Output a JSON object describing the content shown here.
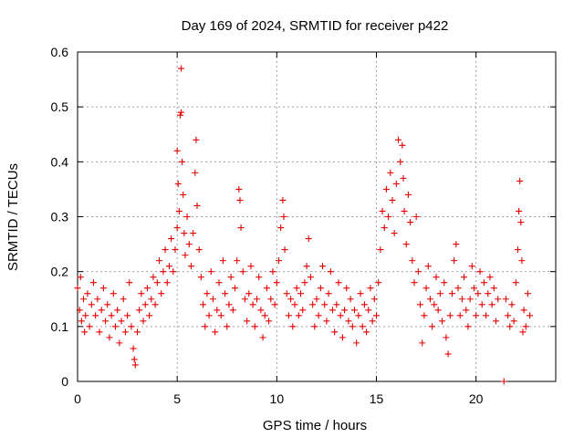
{
  "chart_data": {
    "type": "scatter",
    "title": "Day 169 of 2024, SRMTID for receiver p422",
    "xlabel": "GPS time / hours",
    "ylabel": "SRMTID / TECUs",
    "xlim": [
      0,
      24
    ],
    "ylim": [
      0,
      0.6
    ],
    "xticks": [
      0,
      5,
      10,
      15,
      20
    ],
    "xtick_labels": [
      "0",
      "5",
      "10",
      "15",
      "20"
    ],
    "yticks": [
      0,
      0.1,
      0.2,
      0.3,
      0.4,
      0.5,
      0.6
    ],
    "ytick_labels": [
      "0",
      "0.1",
      "0.2",
      "0.3",
      "0.4",
      "0.5",
      "0.6"
    ],
    "grid": true,
    "marker": "plus",
    "color": "#e60000",
    "series": [
      {
        "name": "SRMTID",
        "points": [
          [
            0.0,
            0.17
          ],
          [
            0.1,
            0.13
          ],
          [
            0.15,
            0.19
          ],
          [
            0.2,
            0.11
          ],
          [
            0.3,
            0.15
          ],
          [
            0.35,
            0.09
          ],
          [
            0.4,
            0.12
          ],
          [
            0.5,
            0.16
          ],
          [
            0.6,
            0.1
          ],
          [
            0.7,
            0.14
          ],
          [
            0.8,
            0.18
          ],
          [
            0.9,
            0.12
          ],
          [
            1.0,
            0.15
          ],
          [
            1.1,
            0.09
          ],
          [
            1.2,
            0.13
          ],
          [
            1.3,
            0.17
          ],
          [
            1.4,
            0.11
          ],
          [
            1.5,
            0.14
          ],
          [
            1.6,
            0.08
          ],
          [
            1.7,
            0.12
          ],
          [
            1.8,
            0.16
          ],
          [
            1.9,
            0.1
          ],
          [
            2.0,
            0.13
          ],
          [
            2.1,
            0.07
          ],
          [
            2.2,
            0.11
          ],
          [
            2.3,
            0.15
          ],
          [
            2.4,
            0.09
          ],
          [
            2.5,
            0.12
          ],
          [
            2.6,
            0.18
          ],
          [
            2.7,
            0.1
          ],
          [
            2.8,
            0.06
          ],
          [
            2.85,
            0.04
          ],
          [
            2.9,
            0.03
          ],
          [
            3.0,
            0.09
          ],
          [
            3.1,
            0.13
          ],
          [
            3.2,
            0.16
          ],
          [
            3.3,
            0.11
          ],
          [
            3.4,
            0.14
          ],
          [
            3.5,
            0.17
          ],
          [
            3.6,
            0.12
          ],
          [
            3.7,
            0.15
          ],
          [
            3.8,
            0.19
          ],
          [
            3.9,
            0.14
          ],
          [
            4.0,
            0.18
          ],
          [
            4.1,
            0.22
          ],
          [
            4.2,
            0.16
          ],
          [
            4.3,
            0.2
          ],
          [
            4.4,
            0.24
          ],
          [
            4.5,
            0.18
          ],
          [
            4.6,
            0.21
          ],
          [
            4.7,
            0.26
          ],
          [
            4.8,
            0.2
          ],
          [
            4.9,
            0.24
          ],
          [
            5.0,
            0.28
          ],
          [
            5.0,
            0.42
          ],
          [
            5.05,
            0.36
          ],
          [
            5.1,
            0.31
          ],
          [
            5.15,
            0.485
          ],
          [
            5.2,
            0.49
          ],
          [
            5.2,
            0.57
          ],
          [
            5.25,
            0.4
          ],
          [
            5.3,
            0.34
          ],
          [
            5.35,
            0.27
          ],
          [
            5.4,
            0.23
          ],
          [
            5.5,
            0.3
          ],
          [
            5.6,
            0.25
          ],
          [
            5.7,
            0.21
          ],
          [
            5.8,
            0.27
          ],
          [
            5.9,
            0.38
          ],
          [
            5.95,
            0.44
          ],
          [
            6.0,
            0.32
          ],
          [
            6.1,
            0.24
          ],
          [
            6.2,
            0.19
          ],
          [
            6.3,
            0.14
          ],
          [
            6.4,
            0.1
          ],
          [
            6.5,
            0.16
          ],
          [
            6.6,
            0.12
          ],
          [
            6.7,
            0.2
          ],
          [
            6.8,
            0.15
          ],
          [
            6.9,
            0.09
          ],
          [
            7.0,
            0.13
          ],
          [
            7.1,
            0.18
          ],
          [
            7.2,
            0.12
          ],
          [
            7.3,
            0.22
          ],
          [
            7.4,
            0.16
          ],
          [
            7.5,
            0.1
          ],
          [
            7.6,
            0.14
          ],
          [
            7.7,
            0.19
          ],
          [
            7.8,
            0.13
          ],
          [
            7.9,
            0.17
          ],
          [
            8.0,
            0.22
          ],
          [
            8.1,
            0.35
          ],
          [
            8.15,
            0.33
          ],
          [
            8.2,
            0.28
          ],
          [
            8.3,
            0.2
          ],
          [
            8.4,
            0.15
          ],
          [
            8.5,
            0.11
          ],
          [
            8.6,
            0.16
          ],
          [
            8.7,
            0.21
          ],
          [
            8.8,
            0.14
          ],
          [
            8.9,
            0.1
          ],
          [
            9.0,
            0.15
          ],
          [
            9.1,
            0.19
          ],
          [
            9.2,
            0.13
          ],
          [
            9.3,
            0.08
          ],
          [
            9.4,
            0.12
          ],
          [
            9.5,
            0.17
          ],
          [
            9.6,
            0.11
          ],
          [
            9.7,
            0.15
          ],
          [
            9.8,
            0.2
          ],
          [
            9.9,
            0.14
          ],
          [
            10.0,
            0.18
          ],
          [
            10.1,
            0.22
          ],
          [
            10.2,
            0.28
          ],
          [
            10.3,
            0.33
          ],
          [
            10.35,
            0.3
          ],
          [
            10.4,
            0.24
          ],
          [
            10.5,
            0.16
          ],
          [
            10.6,
            0.12
          ],
          [
            10.7,
            0.15
          ],
          [
            10.8,
            0.1
          ],
          [
            10.9,
            0.14
          ],
          [
            11.0,
            0.17
          ],
          [
            11.1,
            0.12
          ],
          [
            11.2,
            0.16
          ],
          [
            11.3,
            0.13
          ],
          [
            11.4,
            0.18
          ],
          [
            11.5,
            0.21
          ],
          [
            11.6,
            0.26
          ],
          [
            11.7,
            0.19
          ],
          [
            11.8,
            0.14
          ],
          [
            11.9,
            0.1
          ],
          [
            12.0,
            0.15
          ],
          [
            12.1,
            0.12
          ],
          [
            12.2,
            0.17
          ],
          [
            12.3,
            0.21
          ],
          [
            12.4,
            0.14
          ],
          [
            12.5,
            0.11
          ],
          [
            12.6,
            0.16
          ],
          [
            12.7,
            0.2
          ],
          [
            12.8,
            0.13
          ],
          [
            12.9,
            0.09
          ],
          [
            13.0,
            0.14
          ],
          [
            13.1,
            0.18
          ],
          [
            13.2,
            0.12
          ],
          [
            13.3,
            0.08
          ],
          [
            13.4,
            0.13
          ],
          [
            13.5,
            0.17
          ],
          [
            13.6,
            0.11
          ],
          [
            13.7,
            0.15
          ],
          [
            13.8,
            0.1
          ],
          [
            13.9,
            0.13
          ],
          [
            14.0,
            0.07
          ],
          [
            14.1,
            0.12
          ],
          [
            14.2,
            0.16
          ],
          [
            14.3,
            0.1
          ],
          [
            14.4,
            0.14
          ],
          [
            14.5,
            0.09
          ],
          [
            14.6,
            0.13
          ],
          [
            14.7,
            0.17
          ],
          [
            14.8,
            0.11
          ],
          [
            14.9,
            0.15
          ],
          [
            15.0,
            0.12
          ],
          [
            15.1,
            0.18
          ],
          [
            15.2,
            0.24
          ],
          [
            15.3,
            0.31
          ],
          [
            15.4,
            0.28
          ],
          [
            15.5,
            0.35
          ],
          [
            15.6,
            0.3
          ],
          [
            15.7,
            0.38
          ],
          [
            15.8,
            0.33
          ],
          [
            15.9,
            0.27
          ],
          [
            16.0,
            0.36
          ],
          [
            16.1,
            0.44
          ],
          [
            16.2,
            0.4
          ],
          [
            16.3,
            0.43
          ],
          [
            16.35,
            0.37
          ],
          [
            16.4,
            0.31
          ],
          [
            16.5,
            0.25
          ],
          [
            16.6,
            0.34
          ],
          [
            16.7,
            0.29
          ],
          [
            16.8,
            0.22
          ],
          [
            16.9,
            0.18
          ],
          [
            17.0,
            0.3
          ],
          [
            17.1,
            0.2
          ],
          [
            17.2,
            0.14
          ],
          [
            17.3,
            0.07
          ],
          [
            17.4,
            0.12
          ],
          [
            17.5,
            0.17
          ],
          [
            17.6,
            0.21
          ],
          [
            17.7,
            0.15
          ],
          [
            17.8,
            0.1
          ],
          [
            17.9,
            0.14
          ],
          [
            18.0,
            0.19
          ],
          [
            18.1,
            0.13
          ],
          [
            18.2,
            0.16
          ],
          [
            18.3,
            0.11
          ],
          [
            18.4,
            0.18
          ],
          [
            18.5,
            0.08
          ],
          [
            18.6,
            0.05
          ],
          [
            18.7,
            0.12
          ],
          [
            18.8,
            0.16
          ],
          [
            18.9,
            0.22
          ],
          [
            19.0,
            0.25
          ],
          [
            19.1,
            0.17
          ],
          [
            19.2,
            0.12
          ],
          [
            19.3,
            0.15
          ],
          [
            19.4,
            0.19
          ],
          [
            19.5,
            0.13
          ],
          [
            19.6,
            0.1
          ],
          [
            19.7,
            0.15
          ],
          [
            19.8,
            0.21
          ],
          [
            19.9,
            0.17
          ],
          [
            20.0,
            0.12
          ],
          [
            20.1,
            0.16
          ],
          [
            20.2,
            0.2
          ],
          [
            20.3,
            0.14
          ],
          [
            20.4,
            0.18
          ],
          [
            20.5,
            0.12
          ],
          [
            20.6,
            0.16
          ],
          [
            20.7,
            0.19
          ],
          [
            20.8,
            0.14
          ],
          [
            20.9,
            0.17
          ],
          [
            21.0,
            0.11
          ],
          [
            21.1,
            0.15
          ],
          [
            21.4,
            0.0
          ],
          [
            21.5,
            0.15
          ],
          [
            21.6,
            0.12
          ],
          [
            21.7,
            0.1
          ],
          [
            21.8,
            0.14
          ],
          [
            21.9,
            0.11
          ],
          [
            22.0,
            0.18
          ],
          [
            22.1,
            0.24
          ],
          [
            22.15,
            0.31
          ],
          [
            22.2,
            0.365
          ],
          [
            22.25,
            0.29
          ],
          [
            22.3,
            0.22
          ],
          [
            22.35,
            0.09
          ],
          [
            22.4,
            0.13
          ],
          [
            22.5,
            0.1
          ],
          [
            22.6,
            0.16
          ],
          [
            22.7,
            0.12
          ]
        ]
      }
    ]
  }
}
